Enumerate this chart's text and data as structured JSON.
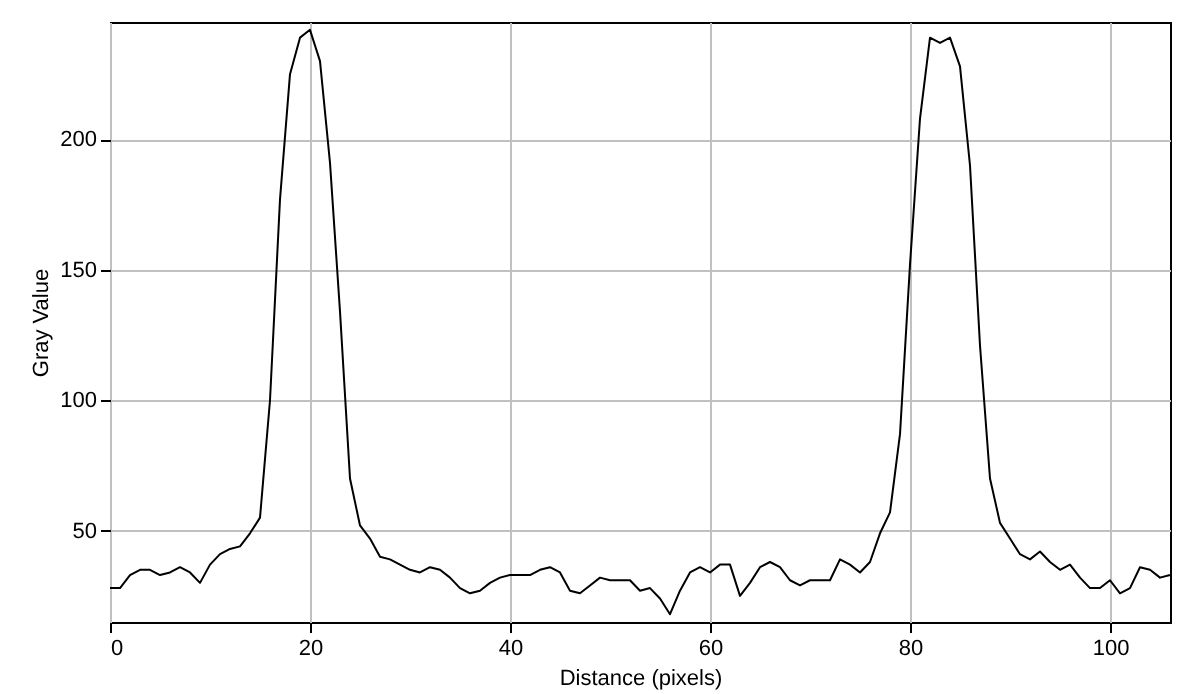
{
  "chart_data": {
    "type": "line",
    "xlabel": "Distance (pixels)",
    "ylabel": "Gray Value",
    "x": [
      0,
      1,
      2,
      3,
      4,
      5,
      6,
      7,
      8,
      9,
      10,
      11,
      12,
      13,
      14,
      15,
      16,
      17,
      18,
      19,
      20,
      21,
      22,
      23,
      24,
      25,
      26,
      27,
      28,
      29,
      30,
      31,
      32,
      33,
      34,
      35,
      36,
      37,
      38,
      39,
      40,
      41,
      42,
      43,
      44,
      45,
      46,
      47,
      48,
      49,
      50,
      51,
      52,
      53,
      54,
      55,
      56,
      57,
      58,
      59,
      60,
      61,
      62,
      63,
      64,
      65,
      66,
      67,
      68,
      69,
      70,
      71,
      72,
      73,
      74,
      75,
      76,
      77,
      78,
      79,
      80,
      81,
      82,
      83,
      84,
      85,
      86,
      87,
      88,
      89,
      90,
      91,
      92,
      93,
      94,
      95,
      96,
      97,
      98,
      99,
      100,
      101,
      102,
      103,
      104,
      105,
      106
    ],
    "series": [
      {
        "color": "#000000",
        "values": [
          28,
          28,
          33,
          35,
          35,
          33,
          34,
          36,
          34,
          30,
          37,
          41,
          43,
          44,
          49,
          55,
          100,
          177,
          225,
          239,
          242,
          230,
          191,
          134,
          70,
          52,
          47,
          40,
          39,
          37,
          35,
          34,
          36,
          35,
          32,
          28,
          26,
          27,
          30,
          32,
          33,
          33,
          33,
          35,
          36,
          34,
          27,
          26,
          29,
          32,
          31,
          31,
          31,
          27,
          28,
          24,
          18,
          27,
          34,
          36,
          34,
          37,
          37,
          25,
          30,
          36,
          38,
          36,
          31,
          29,
          31,
          31,
          31,
          39,
          37,
          34,
          38,
          49,
          57,
          87,
          152,
          208,
          239,
          237,
          239,
          228,
          190,
          121,
          70,
          53,
          47,
          41,
          39,
          42,
          38,
          35,
          37,
          32,
          28,
          28,
          31,
          26,
          28,
          36,
          35,
          32,
          33
        ]
      }
    ],
    "xlim": [
      0,
      106
    ],
    "ylim": [
      15,
      245
    ],
    "xticks": [
      0,
      20,
      40,
      60,
      80,
      100
    ],
    "yticks": [
      50,
      100,
      150,
      200
    ],
    "grid": true,
    "marker": "none",
    "line_style": "solid"
  }
}
